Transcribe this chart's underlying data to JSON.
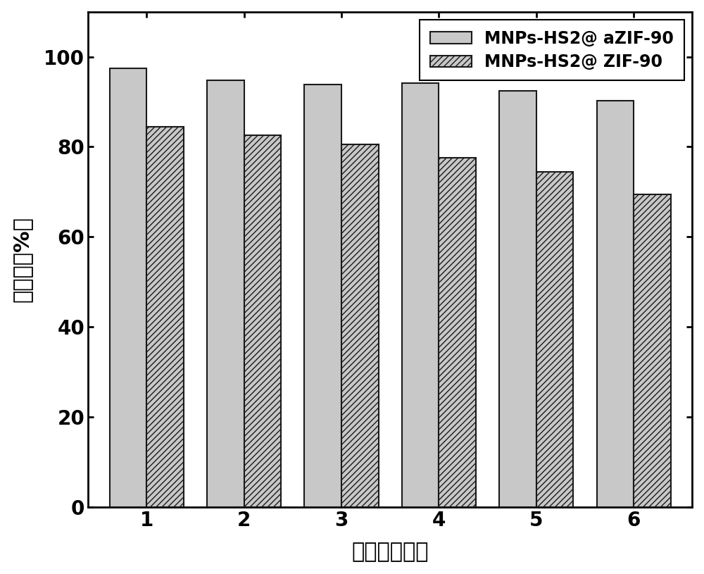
{
  "categories": [
    "1",
    "2",
    "3",
    "4",
    "5",
    "6"
  ],
  "aZIF90_values": [
    97.5,
    94.8,
    93.8,
    94.2,
    92.5,
    90.2
  ],
  "ZIF90_values": [
    84.5,
    82.5,
    80.5,
    77.5,
    74.5,
    69.5
  ],
  "aZIF90_color": "#c8c8c8",
  "ZIF90_color": "#c8c8c8",
  "aZIF90_label": "MNPs-HS2@ aZIF-90",
  "ZIF90_label": "MNPs-HS2@ ZIF-90",
  "xlabel": "重复利用次数",
  "ylabel": "转化率（%）",
  "ylim": [
    0,
    110
  ],
  "yticks": [
    0,
    20,
    40,
    60,
    80,
    100
  ],
  "bar_width": 0.38,
  "edge_color": "#1a1a1a",
  "background_color": "#ffffff",
  "font_size_ticks": 20,
  "font_size_labels": 22,
  "font_size_legend": 17,
  "legend_loc": "upper right"
}
